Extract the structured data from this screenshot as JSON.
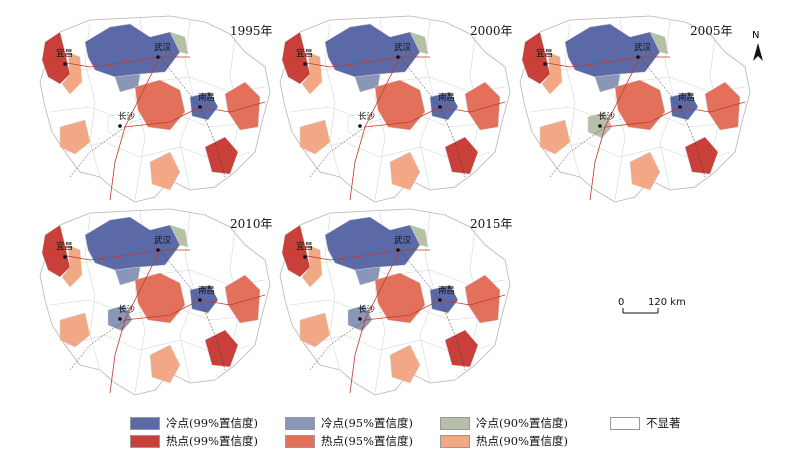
{
  "colors": {
    "cold99": "#5b6aa6",
    "cold95": "#8a96b8",
    "cold90": "#b6bfa8",
    "hot99": "#c9403a",
    "hot95": "#e2705a",
    "hot90": "#f2a884",
    "none": "#ffffff"
  },
  "cities": {
    "yichang": "宜昌",
    "wuhan": "武汉",
    "nanchang": "南昌",
    "changsha": "长沙"
  },
  "panels": [
    {
      "year": "1995年",
      "changsha_class": "none",
      "right_class": "hot95"
    },
    {
      "year": "2000年",
      "changsha_class": "none",
      "right_class": "hot95"
    },
    {
      "year": "2005年",
      "changsha_class": "cold90",
      "right_class": "hot95"
    },
    {
      "year": "2010年",
      "changsha_class": "cold95",
      "right_class": "hot95"
    },
    {
      "year": "2015年",
      "changsha_class": "cold95",
      "right_class": "hot95"
    }
  ],
  "north": "N",
  "scale": {
    "start": "0",
    "end": "120 km"
  },
  "legend": [
    {
      "key": "cold99",
      "label": "冷点(99%置信度)"
    },
    {
      "key": "cold95",
      "label": "冷点(95%置信度)"
    },
    {
      "key": "cold90",
      "label": "冷点(90%置信度)"
    },
    {
      "key": "none",
      "label": "不显著"
    },
    {
      "key": "hot99",
      "label": "热点(99%置信度)"
    },
    {
      "key": "hot95",
      "label": "热点(95%置信度)"
    },
    {
      "key": "hot90",
      "label": "热点(90%置信度)"
    }
  ]
}
